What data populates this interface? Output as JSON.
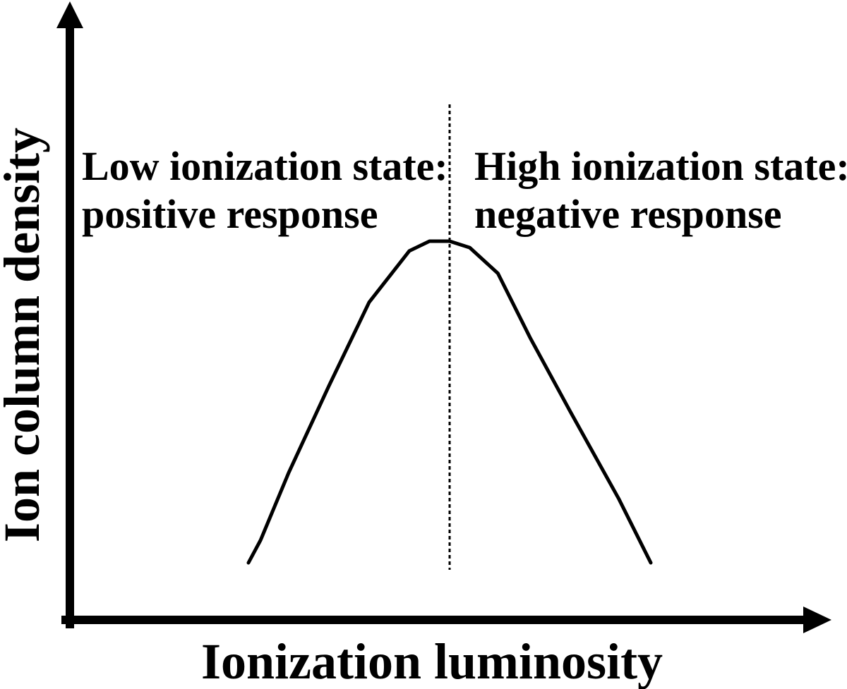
{
  "axes": {
    "x_label": "Ionization luminosity",
    "y_label": "Ion column density"
  },
  "regions": {
    "low": {
      "line1": "Low ionization state:",
      "line2": "positive response"
    },
    "high": {
      "line1": "High ionization state:",
      "line2": "negative response"
    }
  },
  "curve": {
    "shape": "peaked",
    "x": [
      0.0,
      0.03,
      0.1,
      0.2,
      0.3,
      0.4,
      0.45,
      0.5,
      0.55,
      0.62,
      0.7,
      0.8,
      0.92,
      0.98,
      1.0
    ],
    "y": [
      0.0,
      0.07,
      0.28,
      0.55,
      0.81,
      0.97,
      1.0,
      1.0,
      0.98,
      0.9,
      0.7,
      0.47,
      0.2,
      0.05,
      0.0
    ]
  },
  "divider": {
    "style": "dotted",
    "x": 0.5
  },
  "colors": {
    "stroke": "#000000",
    "background": "#ffffff"
  }
}
